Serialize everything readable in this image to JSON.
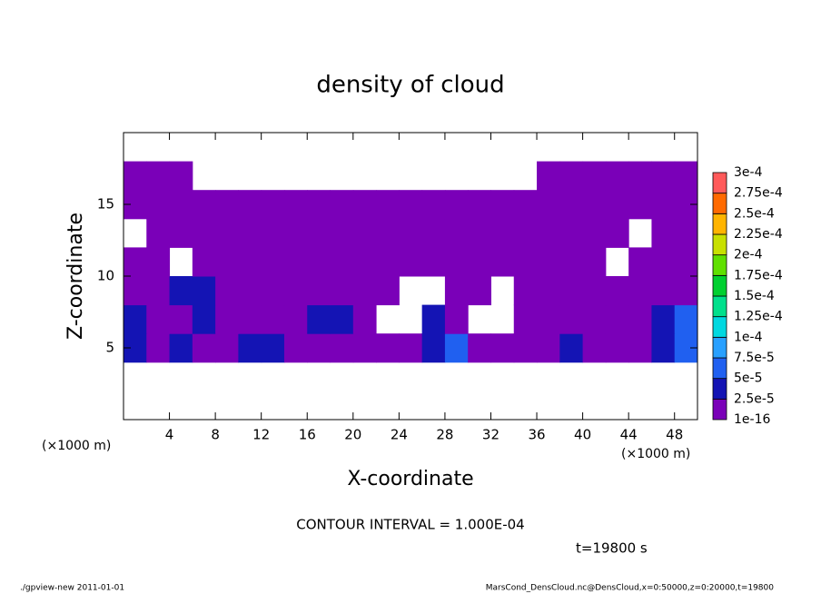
{
  "chart_data": {
    "type": "contour",
    "title": "density of cloud",
    "x_label": "X-coordinate",
    "y_label": "Z-coordinate",
    "x_unit": "(×1000 m)",
    "y_unit": "(×1000 m)",
    "note": "CONTOUR INTERVAL = 1.000E-04",
    "time": "t=19800 s",
    "footer_left": "./gpview-new   2011-01-01",
    "footer_right": "MarsCond_DensCloud.nc@DensCloud,x=0:50000,z=0:20000,t=19800",
    "xlim": [
      0,
      50
    ],
    "ylim": [
      0,
      20
    ],
    "xticks": [
      4,
      8,
      12,
      16,
      20,
      24,
      28,
      32,
      36,
      40,
      44,
      48
    ],
    "yticks": [
      5,
      10,
      15
    ],
    "x": [
      1,
      3,
      5,
      7,
      9,
      11,
      13,
      15,
      17,
      19,
      21,
      23,
      25,
      27,
      29,
      31,
      33,
      35,
      37,
      39,
      41,
      43,
      45,
      47,
      49
    ],
    "y": [
      1,
      3,
      5,
      7,
      9,
      11,
      13,
      15,
      17,
      19
    ],
    "z": [
      [
        null,
        null,
        null,
        null,
        null,
        null,
        null,
        null,
        null,
        null,
        null,
        null,
        null,
        null,
        null,
        null,
        null,
        null,
        null,
        null,
        null,
        null,
        null,
        null,
        null
      ],
      [
        null,
        null,
        null,
        null,
        null,
        null,
        null,
        null,
        null,
        null,
        null,
        null,
        null,
        null,
        null,
        null,
        null,
        null,
        null,
        null,
        null,
        null,
        null,
        null,
        null
      ],
      [
        4e-05,
        1e-06,
        3e-05,
        1e-06,
        1e-06,
        3e-05,
        3e-05,
        1e-06,
        1e-06,
        1e-06,
        1e-06,
        1e-06,
        1e-06,
        4e-05,
        6e-05,
        2e-05,
        1e-06,
        1e-06,
        1e-06,
        3e-05,
        1e-06,
        1e-06,
        1e-06,
        4e-05,
        6e-05
      ],
      [
        4e-05,
        2e-05,
        1e-06,
        3e-05,
        1e-06,
        1e-06,
        1e-06,
        1e-06,
        3e-05,
        4e-05,
        1e-06,
        null,
        null,
        3e-05,
        2e-05,
        null,
        null,
        1e-06,
        2e-05,
        1e-06,
        1e-06,
        1e-06,
        2e-05,
        3e-05,
        5e-05
      ],
      [
        1e-06,
        2e-05,
        4e-05,
        3e-05,
        1e-06,
        2e-05,
        1e-06,
        2e-05,
        1e-06,
        1e-06,
        2e-05,
        1e-06,
        null,
        null,
        1e-06,
        1e-06,
        null,
        1e-06,
        1e-06,
        1e-06,
        1e-06,
        1e-06,
        2e-05,
        1e-06,
        1e-06
      ],
      [
        1e-06,
        1e-06,
        null,
        1e-06,
        1e-06,
        1e-06,
        2e-05,
        1e-06,
        1e-06,
        1e-06,
        1e-06,
        1e-06,
        1e-06,
        2e-05,
        1e-06,
        1e-06,
        1e-06,
        1e-06,
        1e-06,
        1e-06,
        1e-06,
        null,
        1e-06,
        1e-06,
        2e-05
      ],
      [
        null,
        1e-06,
        1e-06,
        1e-06,
        1e-06,
        1e-06,
        1e-06,
        1e-06,
        1e-06,
        1e-06,
        1e-06,
        1e-06,
        1e-06,
        2e-05,
        2e-05,
        1e-06,
        1e-06,
        1e-06,
        1e-06,
        1e-06,
        1e-06,
        1e-06,
        null,
        1e-06,
        1e-06
      ],
      [
        1e-06,
        1e-06,
        1e-06,
        1e-06,
        1e-06,
        1e-06,
        1e-06,
        1e-06,
        1e-06,
        1e-06,
        1e-06,
        1e-06,
        1e-06,
        1e-06,
        1e-06,
        1e-06,
        1e-06,
        1e-06,
        1e-06,
        1e-06,
        1e-06,
        1e-06,
        1e-06,
        1e-06,
        1e-06
      ],
      [
        1e-06,
        1e-06,
        1e-06,
        null,
        null,
        null,
        null,
        null,
        null,
        null,
        null,
        null,
        null,
        null,
        null,
        null,
        null,
        null,
        1e-06,
        1e-06,
        1e-06,
        1e-06,
        1e-06,
        1e-06,
        1e-06
      ],
      [
        null,
        null,
        null,
        null,
        null,
        null,
        null,
        null,
        null,
        null,
        null,
        null,
        null,
        null,
        null,
        null,
        null,
        null,
        null,
        null,
        null,
        null,
        null,
        null,
        null
      ]
    ],
    "levels": [
      1e-16,
      {
        "value": 2.5e-05,
        "label": "2.5e-5"
      },
      {
        "value": 5e-05,
        "label": "5e-5"
      },
      {
        "value": 7.5e-05,
        "label": "7.5e-5"
      },
      {
        "value": 0.0001,
        "label": "1e-4"
      },
      {
        "value": 0.000125,
        "label": "1.25e-4"
      },
      {
        "value": 0.00015,
        "label": "1.5e-4"
      },
      {
        "value": 0.000175,
        "label": "1.75e-4"
      },
      {
        "value": 0.0002,
        "label": "2e-4"
      },
      {
        "value": 0.000225,
        "label": "2.25e-4"
      },
      {
        "value": 0.00025,
        "label": "2.5e-4"
      },
      {
        "value": 0.000275,
        "label": "2.75e-4"
      },
      {
        "value": 0.0003,
        "label": "3e-4"
      }
    ],
    "colors": [
      "#7a00b8",
      "#1414b4",
      "#2060f0",
      "#28a0ff",
      "#00d8e0",
      "#00e08c",
      "#00d030",
      "#60e000",
      "#c8e000",
      "#ffb400",
      "#ff6a00",
      "#ff5a5a"
    ]
  }
}
